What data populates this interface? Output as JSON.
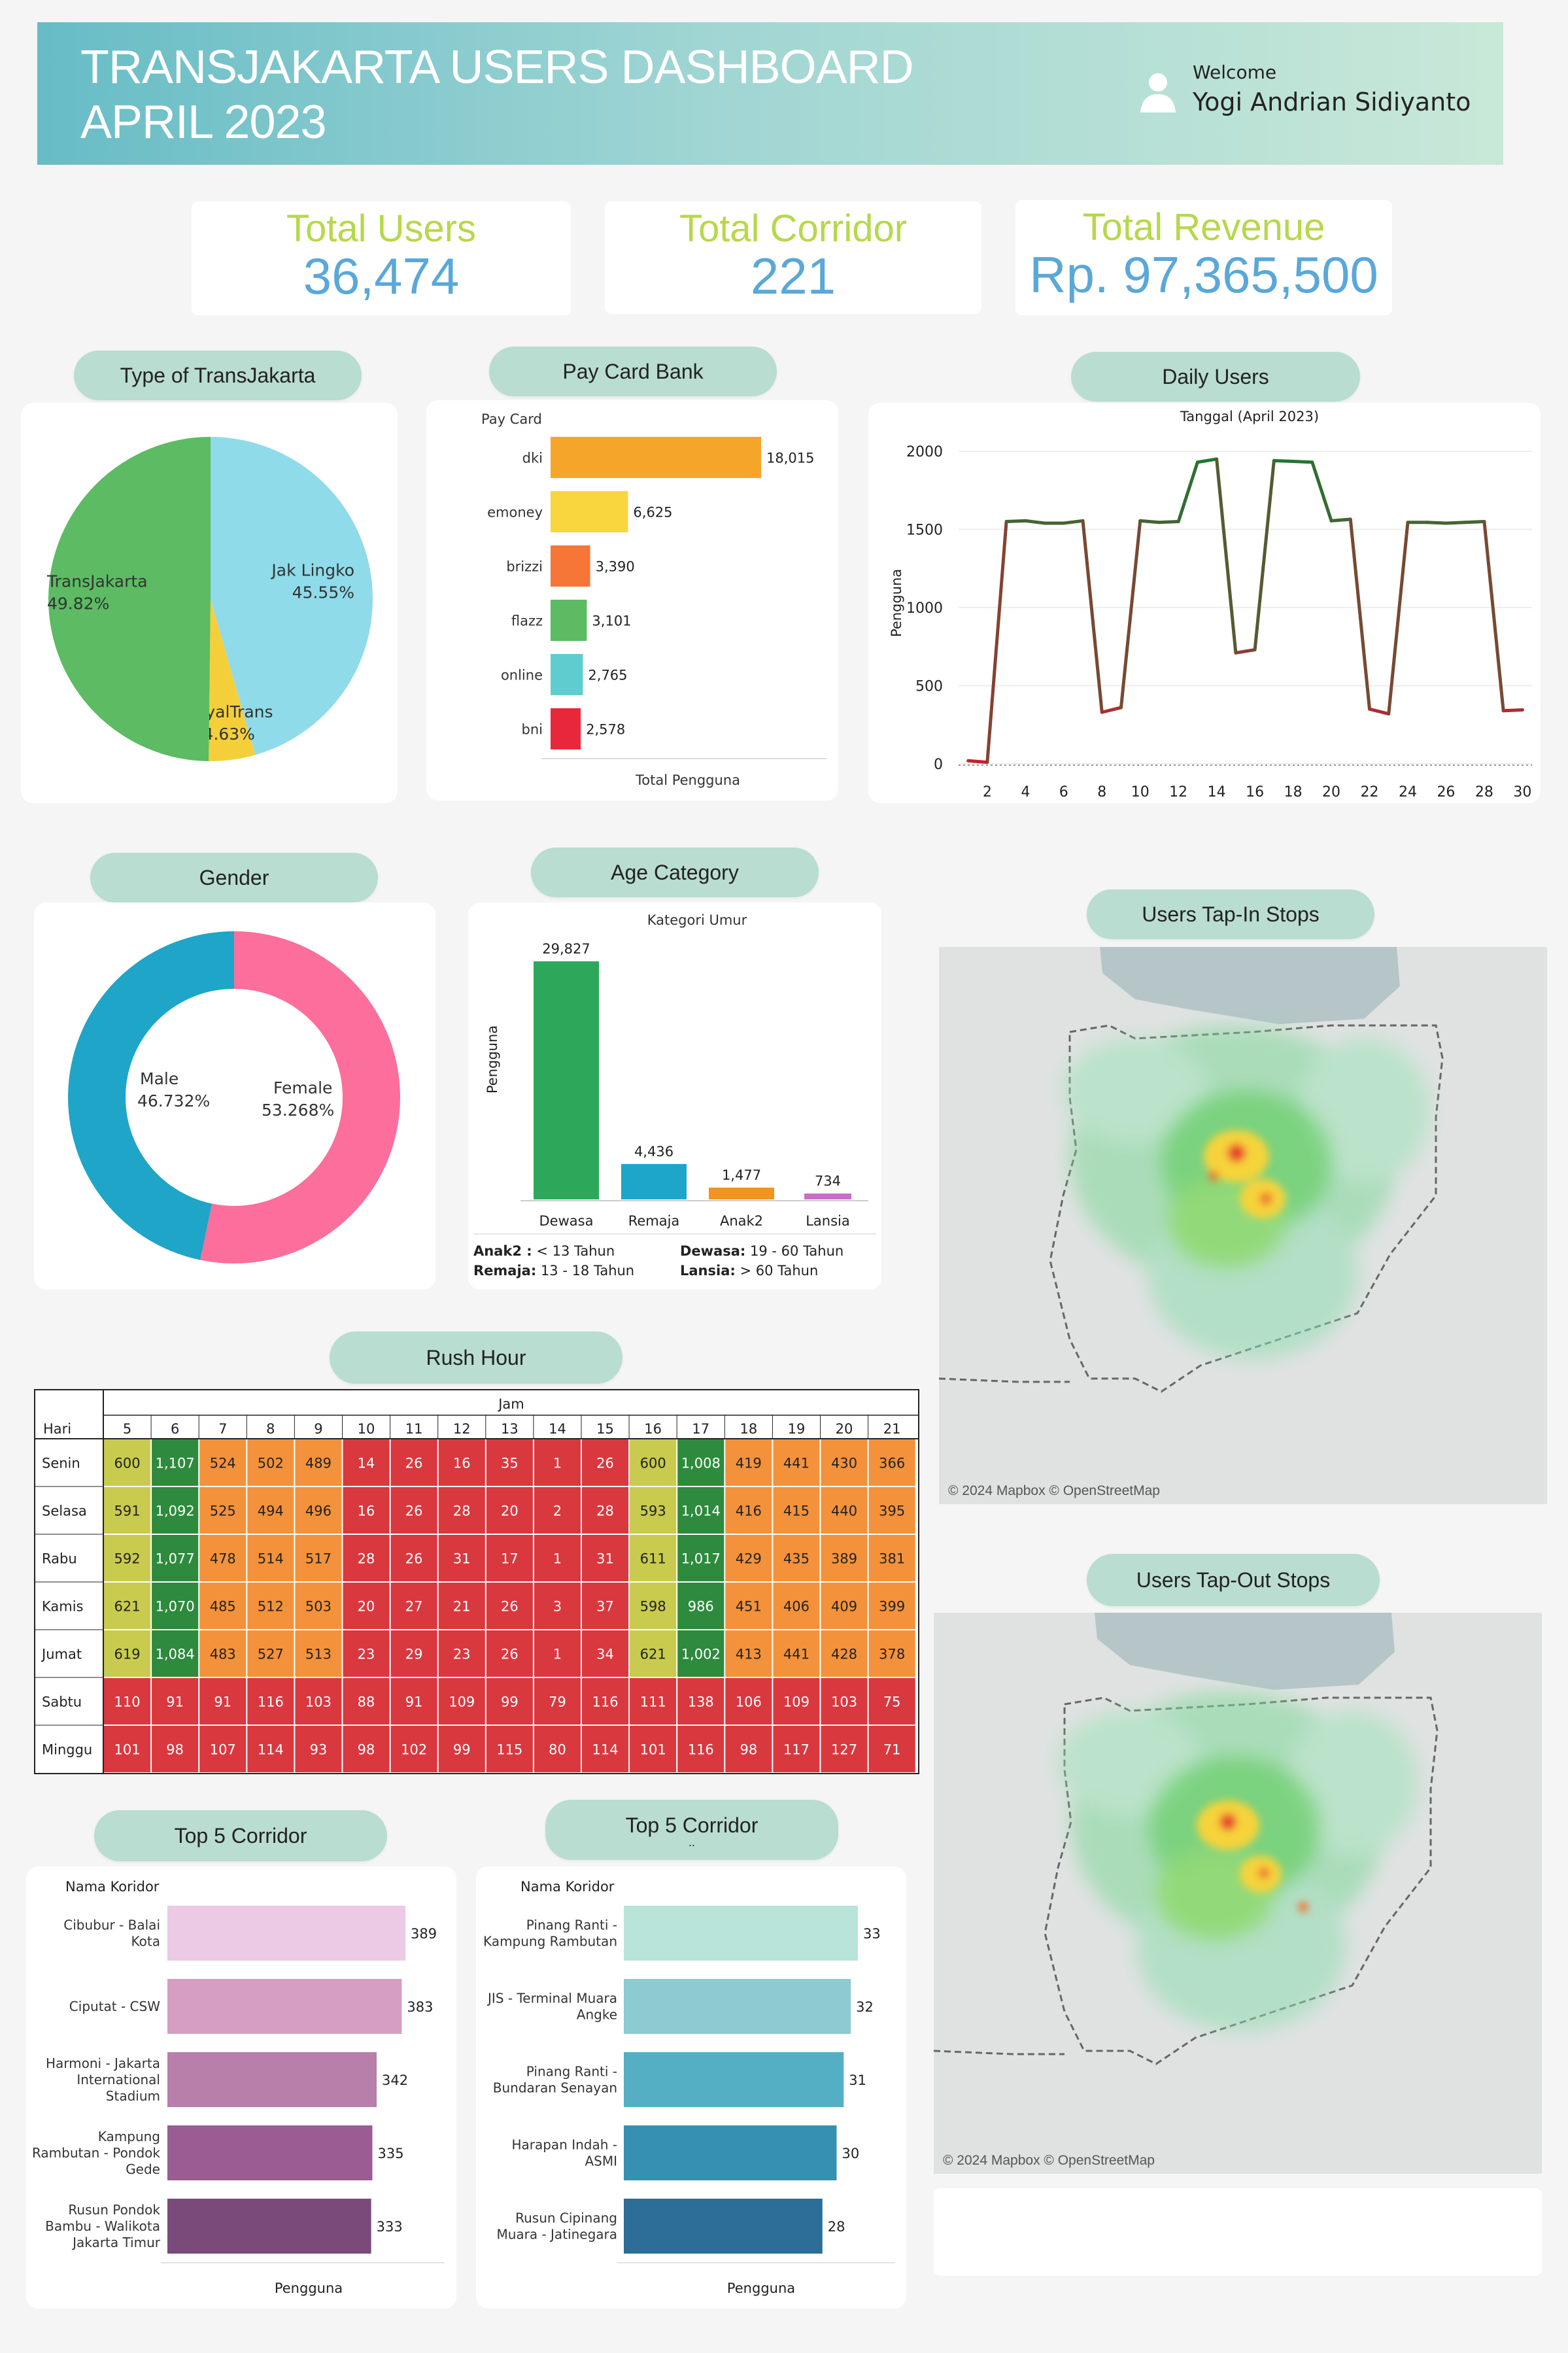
{
  "header": {
    "title_line1": "TRANSJAKARTA USERS DASHBOARD",
    "title_line2": "APRIL 2023",
    "welcome": "Welcome",
    "user_name": "Yogi Andrian Sidiyanto",
    "user_icon": "user-icon"
  },
  "kpis": {
    "users_label": "Total Users",
    "users_value": "36,474",
    "corridor_label": "Total Corridor",
    "corridor_value": "221",
    "revenue_label": "Total Revenue",
    "revenue_value": "Rp. 97,365,500"
  },
  "colors": {
    "pill": "#b9ddd0",
    "kpi_label": "#b6d84a",
    "kpi_value": "#5aa8d8",
    "header_start": "#67bcc6",
    "header_end": "#c9e8d8"
  },
  "pills": {
    "type": "Type of TransJakarta",
    "paycard": "Pay Card Bank",
    "daily": "Daily Users",
    "gender": "Gender",
    "age": "Age Category",
    "tapin": "Users Tap-In Stops",
    "rush": "Rush Hour",
    "tapout": "Users Tap-Out Stops",
    "top5a": "Top 5 Corridor",
    "top5b": "Top 5 Corridor",
    "top5b_sub": ".."
  },
  "age_notes": {
    "anak2_key": "Anak2 :",
    "anak2_val": "< 13 Tahun",
    "remaja_key": "Remaja:",
    "remaja_val": "13 - 18 Tahun",
    "dewasa_key": "Dewasa:",
    "dewasa_val": "19 - 60 Tahun",
    "lansia_key": "Lansia:",
    "lansia_val": "> 60 Tahun"
  },
  "maps": {
    "credit": "© 2024 Mapbox © OpenStreetMap"
  },
  "chart_data": [
    {
      "id": "type_of_transjakarta",
      "type": "pie",
      "labels": [
        "Jak Lingko",
        "RoyalTrans",
        "TransJakarta"
      ],
      "values": [
        45.55,
        4.63,
        49.82
      ],
      "value_labels": [
        "45.55%",
        "4.63%",
        "49.82%"
      ],
      "colors": [
        "#8fdbe9",
        "#f5cf3a",
        "#5cbb63"
      ]
    },
    {
      "id": "pay_card_bank",
      "type": "bar",
      "orientation": "horizontal",
      "ylabel": "Pay Card",
      "xlabel": "Total Pengguna",
      "categories": [
        "dki",
        "emoney",
        "brizzi",
        "flazz",
        "online",
        "bni"
      ],
      "values": [
        18015,
        6625,
        3390,
        3101,
        2765,
        2578
      ],
      "value_labels": [
        "18,015",
        "6,625",
        "3,390",
        "3,101",
        "2,765",
        "2,578"
      ],
      "colors": [
        "#f5a52a",
        "#f9d53e",
        "#f57636",
        "#5cbb63",
        "#5fcdd0",
        "#e8283a"
      ]
    },
    {
      "id": "daily_users",
      "type": "line",
      "title": "Tanggal (April 2023)",
      "ylabel": "Pengguna",
      "x": [
        1,
        2,
        3,
        4,
        5,
        6,
        7,
        8,
        9,
        10,
        11,
        12,
        13,
        14,
        15,
        16,
        17,
        18,
        19,
        20,
        21,
        22,
        23,
        24,
        25,
        26,
        27,
        28,
        29,
        30
      ],
      "y": [
        20,
        10,
        1550,
        1555,
        1540,
        1540,
        1555,
        330,
        360,
        1555,
        1545,
        1550,
        1930,
        1950,
        710,
        730,
        1940,
        1935,
        1930,
        1555,
        1565,
        350,
        320,
        1545,
        1545,
        1540,
        1545,
        1550,
        340,
        345
      ],
      "ylim": [
        0,
        2000
      ],
      "yticks": [
        0,
        500,
        1000,
        1500,
        2000
      ],
      "xticks": [
        2,
        4,
        6,
        8,
        10,
        12,
        14,
        16,
        18,
        20,
        22,
        24,
        26,
        28,
        30
      ],
      "grid": true
    },
    {
      "id": "gender",
      "type": "pie",
      "donut": true,
      "labels": [
        "Male",
        "Female"
      ],
      "values": [
        46.732,
        53.268
      ],
      "value_labels": [
        "46.732%",
        "53.268%"
      ],
      "colors": [
        "#1ea5c8",
        "#fc6e9c"
      ]
    },
    {
      "id": "age_category",
      "type": "bar",
      "title": "Kategori Umur",
      "ylabel": "Pengguna",
      "categories": [
        "Dewasa",
        "Remaja",
        "Anak2",
        "Lansia"
      ],
      "values": [
        29827,
        4436,
        1477,
        734
      ],
      "value_labels": [
        "29,827",
        "4,436",
        "1,477",
        "734"
      ],
      "colors": [
        "#2da85a",
        "#1da6c8",
        "#f2941f",
        "#c86ec8"
      ]
    },
    {
      "id": "rush_hour",
      "type": "heatmap",
      "row_header": "Hari",
      "col_header": "Jam",
      "cols": [
        "5",
        "6",
        "7",
        "8",
        "9",
        "10",
        "11",
        "12",
        "13",
        "14",
        "15",
        "16",
        "17",
        "18",
        "19",
        "20",
        "21"
      ],
      "rows": [
        "Senin",
        "Selasa",
        "Rabu",
        "Kamis",
        "Jumat",
        "Sabtu",
        "Minggu"
      ],
      "values": [
        [
          600,
          1107,
          524,
          502,
          489,
          14,
          26,
          16,
          35,
          1,
          26,
          600,
          1008,
          419,
          441,
          430,
          366
        ],
        [
          591,
          1092,
          525,
          494,
          496,
          16,
          26,
          28,
          20,
          2,
          28,
          593,
          1014,
          416,
          415,
          440,
          395
        ],
        [
          592,
          1077,
          478,
          514,
          517,
          28,
          26,
          31,
          17,
          1,
          31,
          611,
          1017,
          429,
          435,
          389,
          381
        ],
        [
          621,
          1070,
          485,
          512,
          503,
          20,
          27,
          21,
          26,
          3,
          37,
          598,
          986,
          451,
          406,
          409,
          399
        ],
        [
          619,
          1084,
          483,
          527,
          513,
          23,
          29,
          23,
          26,
          1,
          34,
          621,
          1002,
          413,
          441,
          428,
          378
        ],
        [
          110,
          91,
          91,
          116,
          103,
          88,
          91,
          109,
          99,
          79,
          116,
          111,
          138,
          106,
          109,
          103,
          75
        ],
        [
          101,
          98,
          107,
          114,
          93,
          98,
          102,
          99,
          115,
          80,
          114,
          101,
          116,
          98,
          117,
          127,
          71
        ]
      ],
      "value_labels": [
        [
          "600",
          "1,107",
          "524",
          "502",
          "489",
          "14",
          "26",
          "16",
          "35",
          "1",
          "26",
          "600",
          "1,008",
          "419",
          "441",
          "430",
          "366"
        ],
        [
          "591",
          "1,092",
          "525",
          "494",
          "496",
          "16",
          "26",
          "28",
          "20",
          "2",
          "28",
          "593",
          "1,014",
          "416",
          "415",
          "440",
          "395"
        ],
        [
          "592",
          "1,077",
          "478",
          "514",
          "517",
          "28",
          "26",
          "31",
          "17",
          "1",
          "31",
          "611",
          "1,017",
          "429",
          "435",
          "389",
          "381"
        ],
        [
          "621",
          "1,070",
          "485",
          "512",
          "503",
          "20",
          "27",
          "21",
          "26",
          "3",
          "37",
          "598",
          "986",
          "451",
          "406",
          "409",
          "399"
        ],
        [
          "619",
          "1,084",
          "483",
          "527",
          "513",
          "23",
          "29",
          "23",
          "26",
          "1",
          "34",
          "621",
          "1,002",
          "413",
          "441",
          "428",
          "378"
        ],
        [
          "110",
          "91",
          "91",
          "116",
          "103",
          "88",
          "91",
          "109",
          "99",
          "79",
          "116",
          "111",
          "138",
          "106",
          "109",
          "103",
          "75"
        ],
        [
          "101",
          "98",
          "107",
          "114",
          "93",
          "98",
          "102",
          "99",
          "115",
          "80",
          "114",
          "101",
          "116",
          "98",
          "117",
          "127",
          "71"
        ]
      ]
    },
    {
      "id": "top5_corridor_a",
      "type": "bar",
      "orientation": "horizontal",
      "ylabel": "Nama Koridor",
      "xlabel": "Pengguna",
      "categories": [
        [
          "Cibubur - Balai",
          "Kota"
        ],
        [
          "Ciputat - CSW"
        ],
        [
          "Harmoni - Jakarta",
          "International",
          "Stadium"
        ],
        [
          "Kampung",
          "Rambutan - Pondok",
          "Gede"
        ],
        [
          "Rusun Pondok",
          "Bambu - Walikota",
          "Jakarta Timur"
        ]
      ],
      "values": [
        389,
        383,
        342,
        335,
        333
      ],
      "value_labels": [
        "389",
        "383",
        "342",
        "335",
        "333"
      ],
      "colors": [
        "#ecc9e4",
        "#d59ec2",
        "#b77fa9",
        "#9a5c92",
        "#7a4a7a"
      ]
    },
    {
      "id": "top5_corridor_b",
      "type": "bar",
      "orientation": "horizontal",
      "ylabel": "Nama Koridor",
      "xlabel": "Pengguna",
      "categories": [
        [
          "Pinang Ranti -",
          "Kampung Rambutan"
        ],
        [
          "JIS - Terminal Muara",
          "Angke"
        ],
        [
          "Pinang Ranti -",
          "Bundaran Senayan"
        ],
        [
          "Harapan Indah -",
          "ASMI"
        ],
        [
          "Rusun Cipinang",
          "Muara - Jatinegara"
        ]
      ],
      "values": [
        33,
        32,
        31,
        30,
        28
      ],
      "value_labels": [
        "33",
        "32",
        "31",
        "30",
        "28"
      ],
      "colors": [
        "#b9e4da",
        "#8ccbd1",
        "#55afc4",
        "#3690b0",
        "#2c6e97"
      ]
    }
  ]
}
